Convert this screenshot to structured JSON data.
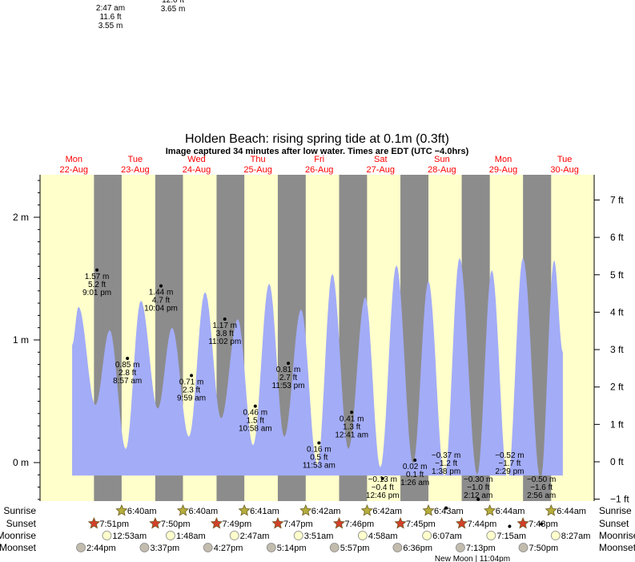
{
  "chart_data": {
    "type": "area",
    "title": "Holden Beach: rising  spring tide at 0.1m (0.3ft)",
    "subtitle": "Image captured 34 minutes after low water. Times are EDT (UTC −4.0hrs)",
    "days": [
      {
        "name": "Mon",
        "date": "22-Aug"
      },
      {
        "name": "Tue",
        "date": "23-Aug"
      },
      {
        "name": "Wed",
        "date": "24-Aug"
      },
      {
        "name": "Thu",
        "date": "25-Aug"
      },
      {
        "name": "Fri",
        "date": "26-Aug"
      },
      {
        "name": "Sat",
        "date": "27-Aug"
      },
      {
        "name": "Sun",
        "date": "28-Aug"
      },
      {
        "name": "Mon",
        "date": "29-Aug"
      },
      {
        "name": "Tue",
        "date": "30-Aug"
      }
    ],
    "y_left": {
      "unit": "m",
      "ticks": [
        {
          "v": 2,
          "label": "2 m"
        },
        {
          "v": 1,
          "label": "1 m"
        },
        {
          "v": 0,
          "label": "0 m"
        }
      ],
      "range": [
        -0.35,
        2.35
      ]
    },
    "y_right": {
      "unit": "ft",
      "ticks": [
        {
          "v": 7,
          "label": "7 ft"
        },
        {
          "v": 6,
          "label": "6 ft"
        },
        {
          "v": 5,
          "label": "5 ft"
        },
        {
          "v": 4,
          "label": "4 ft"
        },
        {
          "v": 3,
          "label": "3 ft"
        },
        {
          "v": 2,
          "label": "2 ft"
        },
        {
          "v": 1,
          "label": "1 ft"
        },
        {
          "v": 0,
          "label": "0 ft"
        },
        {
          "v": -1,
          "label": "−1 ft"
        }
      ]
    },
    "x_unit": "hours since Mon 22-Aug 00:00",
    "tide_curve_extrema_hours_m": [
      [
        11.3,
        0.96
      ],
      [
        13.8,
        1.27
      ],
      [
        20.4,
        0.47
      ],
      [
        26.0,
        1.08
      ],
      [
        32.3,
        0.11
      ],
      [
        38.2,
        1.32
      ],
      [
        44.8,
        0.44
      ],
      [
        50.4,
        1.1
      ],
      [
        57.0,
        0.21
      ],
      [
        63.3,
        1.39
      ],
      [
        69.6,
        0.36
      ],
      [
        76.1,
        1.17
      ],
      [
        82.1,
        0.14
      ],
      [
        88.4,
        1.46
      ],
      [
        94.3,
        0.21
      ],
      [
        100.9,
        1.25
      ],
      [
        107.2,
        -0.02
      ],
      [
        113.1,
        1.54
      ],
      [
        119.4,
        0.11
      ],
      [
        126.0,
        1.35
      ],
      [
        131.9,
        -0.04
      ],
      [
        138.2,
        1.61
      ],
      [
        144.7,
        -0.01
      ],
      [
        150.7,
        1.48
      ],
      [
        157.0,
        -0.12
      ],
      [
        162.9,
        1.67
      ],
      [
        169.8,
        -0.1
      ],
      [
        175.5,
        1.57
      ],
      [
        181.7,
        -0.15
      ],
      [
        187.7,
        1.67
      ],
      [
        194.6,
        -0.15
      ],
      [
        199.9,
        1.65
      ],
      [
        203.3,
        0.9
      ]
    ],
    "curve_floor_m": -0.105,
    "night_bands_hours": [
      [
        19.85,
        30.67
      ],
      [
        43.83,
        54.67
      ],
      [
        67.82,
        78.68
      ],
      [
        91.78,
        102.7
      ],
      [
        115.77,
        126.7
      ],
      [
        139.75,
        150.72
      ],
      [
        163.73,
        174.73
      ],
      [
        187.72,
        198.73
      ]
    ],
    "tide_events": [
      {
        "day": 0,
        "time": "9:01 pm",
        "m": "1.57 m",
        "ft": "5.2 ft",
        "v": 1.57
      },
      {
        "day": 1,
        "time": "8:57 am",
        "m": "0.85 m",
        "ft": "2.8 ft",
        "v": 0.85
      },
      {
        "day": 1,
        "time": "10:04 pm",
        "m": "1.44 m",
        "ft": "4.7 ft",
        "v": 1.44
      },
      {
        "day": 2,
        "time": "9:59 am",
        "m": "0.71 m",
        "ft": "2.3 ft",
        "v": 0.71
      },
      {
        "day": 2,
        "time": "11:02 pm",
        "m": "1.17 m",
        "ft": "3.8 ft",
        "v": 1.17
      },
      {
        "day": 3,
        "time": "10:58 am",
        "m": "0.46 m",
        "ft": "1.5 ft",
        "v": 0.46
      },
      {
        "day": 3,
        "time": "11:53 pm",
        "m": "0.81 m",
        "ft": "2.7 ft",
        "v": 0.81
      },
      {
        "day": 4,
        "time": "11:53 am",
        "m": "0.16 m",
        "ft": "0.5 ft",
        "v": 0.16
      },
      {
        "day": 5,
        "time": "12:41 am",
        "m": "0.41 m",
        "ft": "1.3 ft",
        "v": 0.41
      },
      {
        "day": 5,
        "time": "12:46 pm",
        "m": "−0.13 m",
        "ft": "−0.4 ft",
        "v": -0.13
      },
      {
        "day": 6,
        "time": "1:26 am",
        "m": "0.02 m",
        "ft": "0.1 ft",
        "v": 0.02
      },
      {
        "day": 6,
        "time": "1:38 pm",
        "m": "−0.37 m",
        "ft": "−1.2 ft",
        "v": -0.37
      },
      {
        "day": 7,
        "time": "2:12 am",
        "m": "−0.30 m",
        "ft": "−1.0 ft",
        "v": -0.3
      },
      {
        "day": 7,
        "time": "2:29 pm",
        "m": "−0.52 m",
        "ft": "−1.7 ft",
        "v": -0.52
      },
      {
        "day": 8,
        "time": "2:56 am",
        "m": "−0.50 m",
        "ft": "−1.6 ft",
        "v": -0.5
      }
    ],
    "offscale_labels": [
      {
        "lines": [
          "2:47 am",
          "11.6 ft",
          "3.55 m"
        ]
      },
      {
        "lines": [
          "12.0 ft",
          "3.65 m"
        ]
      }
    ],
    "rows": {
      "labels": {
        "sunrise": "Sunrise",
        "sunset": "Sunset",
        "moonrise": "Moonrise",
        "moonset": "Moonset"
      },
      "sunrise": [
        {
          "day": 1,
          "time": "6:40am"
        },
        {
          "day": 2,
          "time": "6:40am"
        },
        {
          "day": 3,
          "time": "6:41am"
        },
        {
          "day": 4,
          "time": "6:42am"
        },
        {
          "day": 5,
          "time": "6:42am"
        },
        {
          "day": 6,
          "time": "6:43am"
        },
        {
          "day": 7,
          "time": "6:44am"
        },
        {
          "day": 8,
          "time": "6:44am"
        }
      ],
      "sunset": [
        {
          "day": 0,
          "time": "7:51pm"
        },
        {
          "day": 1,
          "time": "7:50pm"
        },
        {
          "day": 2,
          "time": "7:49pm"
        },
        {
          "day": 3,
          "time": "7:47pm"
        },
        {
          "day": 4,
          "time": "7:46pm"
        },
        {
          "day": 5,
          "time": "7:45pm"
        },
        {
          "day": 6,
          "time": "7:44pm"
        },
        {
          "day": 7,
          "time": "7:43pm"
        }
      ],
      "moonrise": [
        {
          "day": 1,
          "time": "12:53am"
        },
        {
          "day": 2,
          "time": "1:48am"
        },
        {
          "day": 3,
          "time": "2:47am"
        },
        {
          "day": 4,
          "time": "3:51am"
        },
        {
          "day": 5,
          "time": "4:58am"
        },
        {
          "day": 6,
          "time": "6:07am"
        },
        {
          "day": 7,
          "time": "7:15am"
        },
        {
          "day": 8,
          "time": "8:27am"
        }
      ],
      "moonset": [
        {
          "day": 0,
          "time": "2:44pm"
        },
        {
          "day": 1,
          "time": "3:37pm"
        },
        {
          "day": 2,
          "time": "4:27pm"
        },
        {
          "day": 3,
          "time": "5:14pm"
        },
        {
          "day": 4,
          "time": "5:57pm"
        },
        {
          "day": 5,
          "time": "6:36pm"
        },
        {
          "day": 6,
          "time": "7:13pm"
        },
        {
          "day": 7,
          "time": "7:50pm"
        }
      ],
      "moon_phase": "New Moon | 11:04pm"
    },
    "colors": {
      "day": "#ffffcc",
      "night": "#8c8c8c",
      "water": "#a3acf7",
      "day_label": "#ff0000",
      "sunrise": "#b5ae3c",
      "sunset": "#d2402a",
      "moonrise": "#ffffcc",
      "moonset": "#c2bcae"
    }
  }
}
